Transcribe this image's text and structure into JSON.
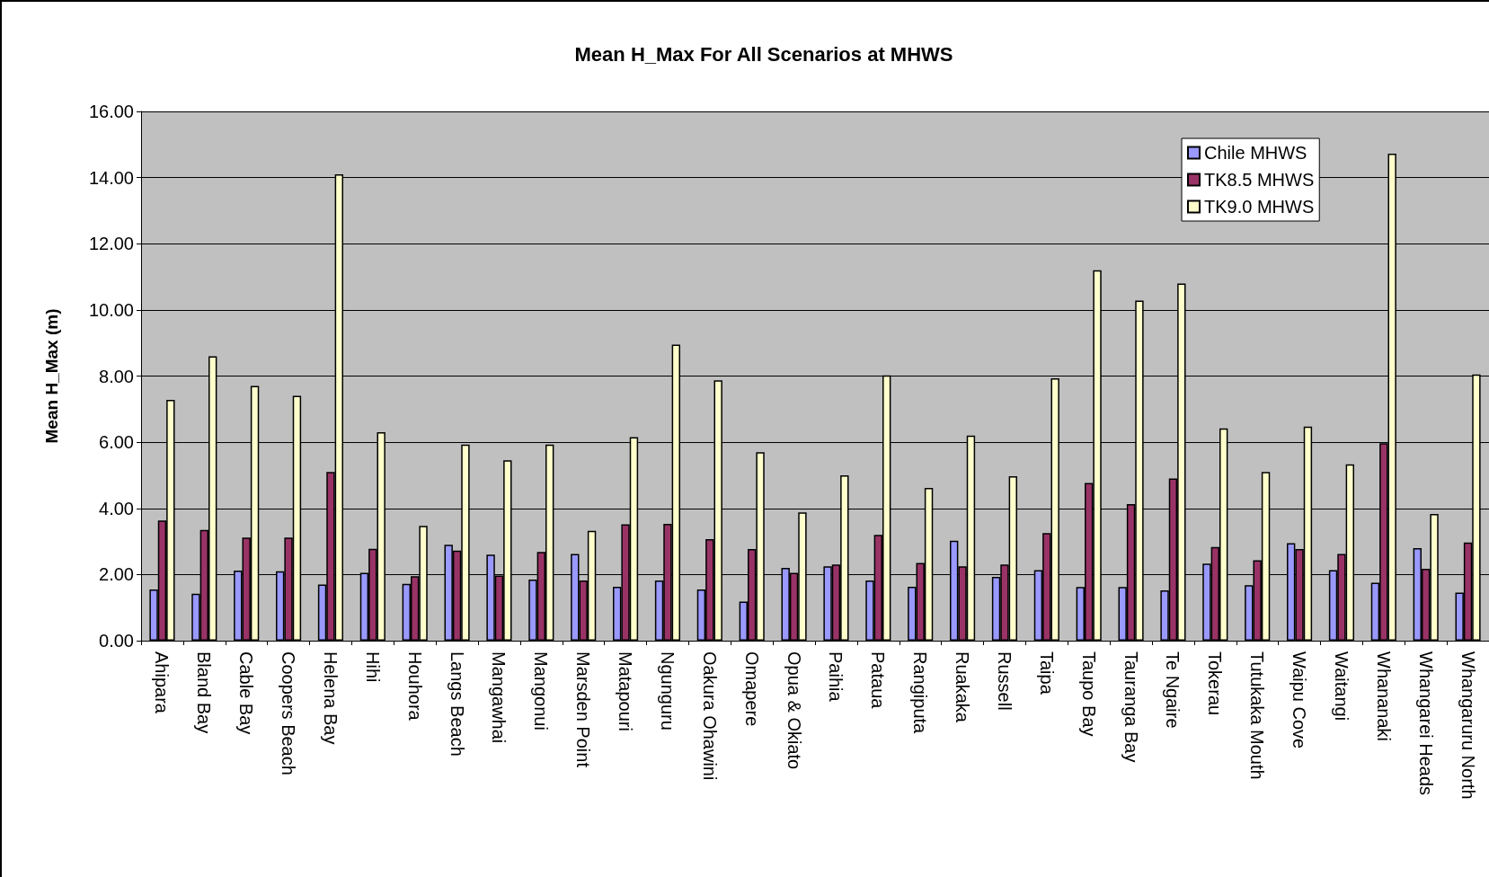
{
  "chart_data": {
    "type": "bar",
    "title": "Mean H_Max For All Scenarios at MHWS",
    "ylabel": "Mean H_Max (m)",
    "categories": [
      "Ahipara",
      "Bland Bay",
      "Cable Bay",
      "Coopers Beach",
      "Helena Bay",
      "Hihi",
      "Houhora",
      "Langs Beach",
      "Mangawhai",
      "Mangonui",
      "Marsden Point",
      "Matapouri",
      "Ngunguru",
      "Oakura Ohawini",
      "Omapere",
      "Opua & Okiato",
      "Paihia",
      "Pataua",
      "Rangiputa",
      "Ruakaka",
      "Russell",
      "Taipa",
      "Taupo Bay",
      "Tauranga Bay",
      "Te Ngaire",
      "Tokerau",
      "Tutukaka Mouth",
      "Waipu Cove",
      "Waitangi",
      "Whananaki",
      "Whangarei Heads",
      "Whangaruru North"
    ],
    "series": [
      {
        "name": "Chile MHWS",
        "color": "#9999ff",
        "values": [
          1.55,
          1.42,
          2.12,
          2.1,
          1.7,
          2.05,
          1.72,
          2.9,
          2.6,
          1.85,
          2.62,
          1.63,
          1.82,
          1.55,
          1.18,
          2.2,
          2.25,
          1.82,
          1.63,
          3.02,
          1.93,
          2.13,
          1.62,
          1.62,
          1.52,
          2.33,
          1.68,
          2.95,
          2.13,
          1.75,
          2.8,
          1.45
        ]
      },
      {
        "name": "TK8.5 MHWS",
        "color": "#993366",
        "values": [
          3.63,
          3.35,
          3.12,
          3.12,
          5.1,
          2.78,
          1.95,
          2.72,
          1.97,
          2.68,
          1.82,
          3.52,
          3.53,
          3.07,
          2.77,
          2.05,
          2.3,
          3.2,
          2.35,
          2.25,
          2.3,
          3.25,
          4.77,
          4.13,
          4.9,
          2.83,
          2.43,
          2.77,
          2.62,
          5.97,
          2.17,
          2.97
        ]
      },
      {
        "name": "TK9.0 MHWS",
        "color": "#ffffcc",
        "values": [
          7.28,
          8.6,
          7.7,
          7.4,
          14.1,
          6.3,
          3.47,
          5.93,
          5.45,
          5.93,
          3.32,
          6.15,
          8.95,
          7.87,
          5.7,
          3.88,
          5.0,
          8.02,
          4.62,
          6.2,
          4.97,
          7.93,
          11.2,
          10.28,
          10.8,
          6.42,
          5.1,
          6.47,
          5.33,
          14.72,
          3.83,
          8.05
        ]
      }
    ],
    "ylim": [
      0,
      16
    ],
    "yticks": [
      {
        "value": 0,
        "label": "0.00"
      },
      {
        "value": 2,
        "label": "2.00"
      },
      {
        "value": 4,
        "label": "4.00"
      },
      {
        "value": 6,
        "label": "6.00"
      },
      {
        "value": 8,
        "label": "8.00"
      },
      {
        "value": 10,
        "label": "10.00"
      },
      {
        "value": 12,
        "label": "12.00"
      },
      {
        "value": 14,
        "label": "14.00"
      },
      {
        "value": 16,
        "label": "16.00"
      }
    ],
    "grid": "y",
    "legend": "top right"
  }
}
